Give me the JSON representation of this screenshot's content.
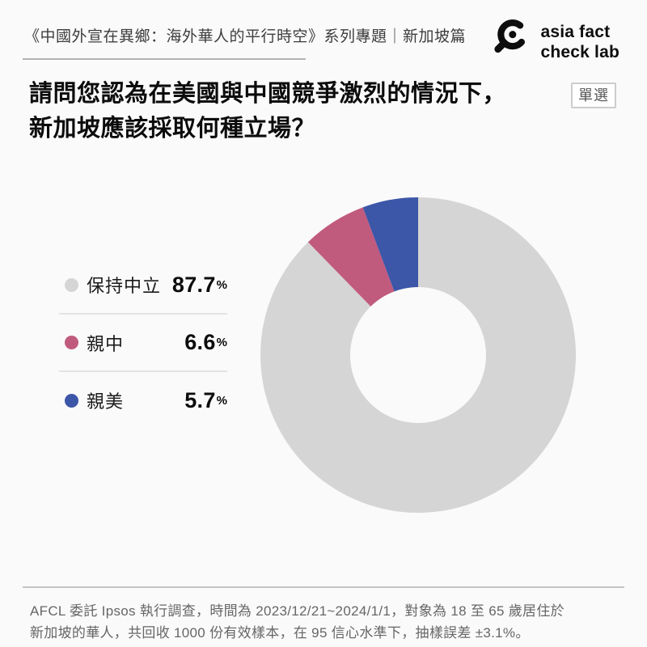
{
  "page": {
    "background": "#fbfafa"
  },
  "header": {
    "series_title": "《中國外宣在異鄉：海外華人的平行時空》系列專題｜新加坡篇",
    "logo": {
      "line1": "asia fact",
      "line2": "check lab",
      "color": "#0d0d0d"
    }
  },
  "question": {
    "line1": "請問您認為在美國與中國競爭激烈的情況下，",
    "line2": "新加坡應該採取何種立場？",
    "badge": "單選"
  },
  "chart_data": {
    "type": "pie",
    "subtype": "donut",
    "title": "請問您認為在美國與中國競爭激烈的情況下，新加坡應該採取何種立場？",
    "categories": [
      "保持中立",
      "親中",
      "親美"
    ],
    "values": [
      87.7,
      6.6,
      5.7
    ],
    "colors": [
      "#d5d5d5",
      "#c05b7e",
      "#3c56a8"
    ],
    "value_suffix": "%",
    "start_angle_deg": 0,
    "direction": "clockwise",
    "inner_radius_ratio": 0.43,
    "legend_position": "left"
  },
  "footer": {
    "line1": "AFCL 委託 Ipsos 執行調查，時間為 2023/12/21~2024/1/1，對象為 18 至 65 歲居住於",
    "line2": "新加坡的華人，共回收 1000 份有效樣本，在 95 信心水準下，抽樣誤差 ±3.1%。"
  }
}
